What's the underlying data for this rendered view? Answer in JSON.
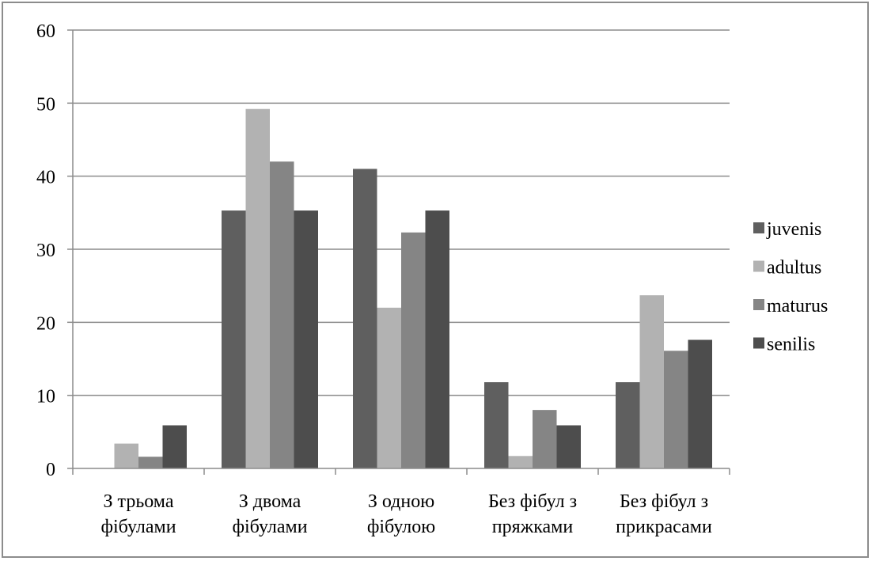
{
  "chart_data": {
    "type": "bar",
    "categories": [
      [
        "З трьома",
        "фібулами"
      ],
      [
        "З двома",
        "фібулами"
      ],
      [
        "З одною",
        "фібулою"
      ],
      [
        "Без фібул з",
        "пряжками"
      ],
      [
        "Без фібул з",
        "прикрасами"
      ]
    ],
    "series": [
      {
        "name": "juvenis",
        "color": "#5f5f5f",
        "values": [
          0,
          35.3,
          41.0,
          11.8,
          11.8
        ]
      },
      {
        "name": "adultus",
        "color": "#b2b2b2",
        "values": [
          3.4,
          49.2,
          22.0,
          1.7,
          23.7
        ]
      },
      {
        "name": "maturus",
        "color": "#858585",
        "values": [
          1.6,
          42.0,
          32.3,
          8.0,
          16.1
        ]
      },
      {
        "name": "senilis",
        "color": "#4d4d4d",
        "values": [
          5.9,
          35.3,
          35.3,
          5.9,
          17.6
        ]
      }
    ],
    "ylim": [
      0,
      60
    ],
    "yticks": [
      0,
      10,
      20,
      30,
      40,
      50,
      60
    ],
    "grid": true,
    "legend_position": "right",
    "title": "",
    "xlabel": "",
    "ylabel": ""
  }
}
